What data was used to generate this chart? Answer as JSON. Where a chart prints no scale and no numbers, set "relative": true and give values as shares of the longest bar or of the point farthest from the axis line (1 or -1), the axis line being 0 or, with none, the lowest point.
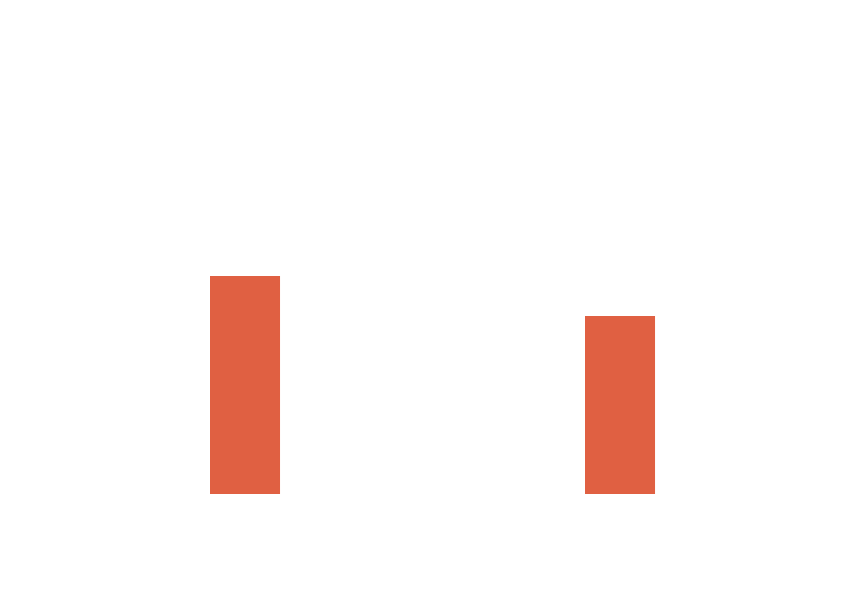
{
  "chart_data": {
    "type": "bar",
    "relative": true,
    "categories": [
      null,
      null
    ],
    "values": [
      1,
      0.815
    ],
    "color": "#e06042"
  }
}
